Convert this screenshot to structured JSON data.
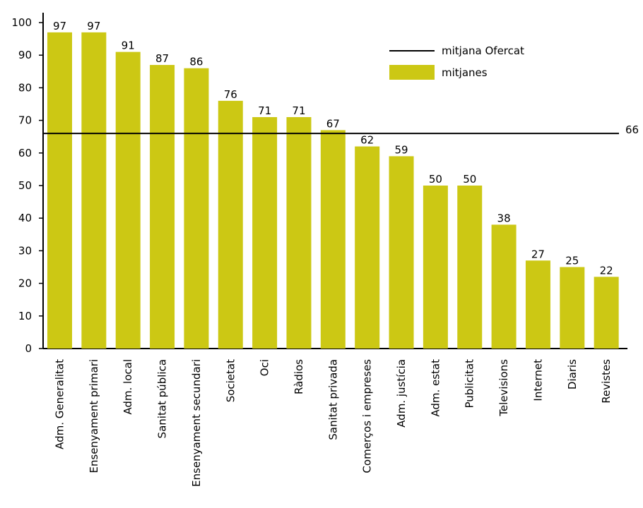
{
  "chart_data": {
    "type": "bar",
    "categories": [
      "Adm. Generalitat",
      "Ensenyament primari",
      "Adm. local",
      "Sanitat pública",
      "Ensenyament secundari",
      "Societat",
      "Oci",
      "Ràdios",
      "Sanitat privada",
      "Comerços i empreses",
      "Adm. justícia",
      "Adm. estat",
      "Publicitat",
      "Televisions",
      "Internet",
      "Diaris",
      "Revistes"
    ],
    "series": [
      {
        "name": "mitjanes",
        "values": [
          97,
          97,
          91,
          87,
          86,
          76,
          71,
          71,
          67,
          62,
          59,
          50,
          50,
          38,
          27,
          25,
          22
        ]
      }
    ],
    "reference_line": {
      "name": "mitjana Ofercat",
      "value": 66,
      "label": "66"
    },
    "ylim": [
      0,
      100
    ],
    "yticks": [
      0,
      10,
      20,
      30,
      40,
      50,
      60,
      70,
      80,
      90,
      100
    ],
    "legend_placement": "top-right",
    "grid": false,
    "colors": {
      "bar": "#ccc814",
      "line": "#000000"
    }
  }
}
